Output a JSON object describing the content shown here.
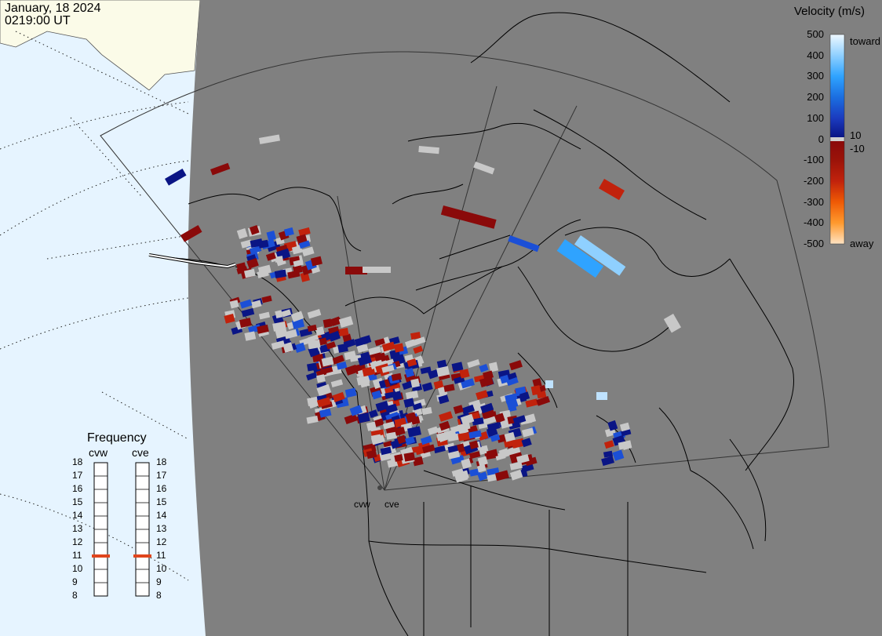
{
  "header": {
    "date": "January, 18 2024",
    "time": "0219:00 UT"
  },
  "colorbar": {
    "title": "Velocity (m/s)",
    "ticks": [
      "500",
      "400",
      "300",
      "200",
      "100",
      "0",
      "-100",
      "-200",
      "-300",
      "-400",
      "-500"
    ],
    "inner_pos": "10",
    "inner_neg": "-10",
    "toward_label": "toward",
    "away_label": "away",
    "colors": {
      "toward_light": "#e8f6ff",
      "toward_mid": "#2fa3ff",
      "toward_blue": "#1b4fd6",
      "toward_dark": "#0a1585",
      "zero": "#c8c8c8",
      "away_dark": "#8a0a0a",
      "away_red": "#c1220c",
      "away_orange": "#ff7b00",
      "away_light": "#ffe3c2"
    }
  },
  "frequency": {
    "title": "Frequency",
    "radars": [
      "cvw",
      "cve"
    ],
    "scale": [
      "18",
      "17",
      "16",
      "15",
      "14",
      "13",
      "12",
      "11",
      "10",
      "9",
      "8"
    ],
    "selected_mhz": [
      11,
      11
    ],
    "marker_color": "#e0451c"
  },
  "sites": {
    "west": "cvw",
    "east": "cve"
  },
  "map_colors": {
    "ocean": "#e6f4ff",
    "land_shaded": "#808080",
    "daylit_land": "#fbfbe8",
    "gs_scatter": "#cfcfcf"
  }
}
